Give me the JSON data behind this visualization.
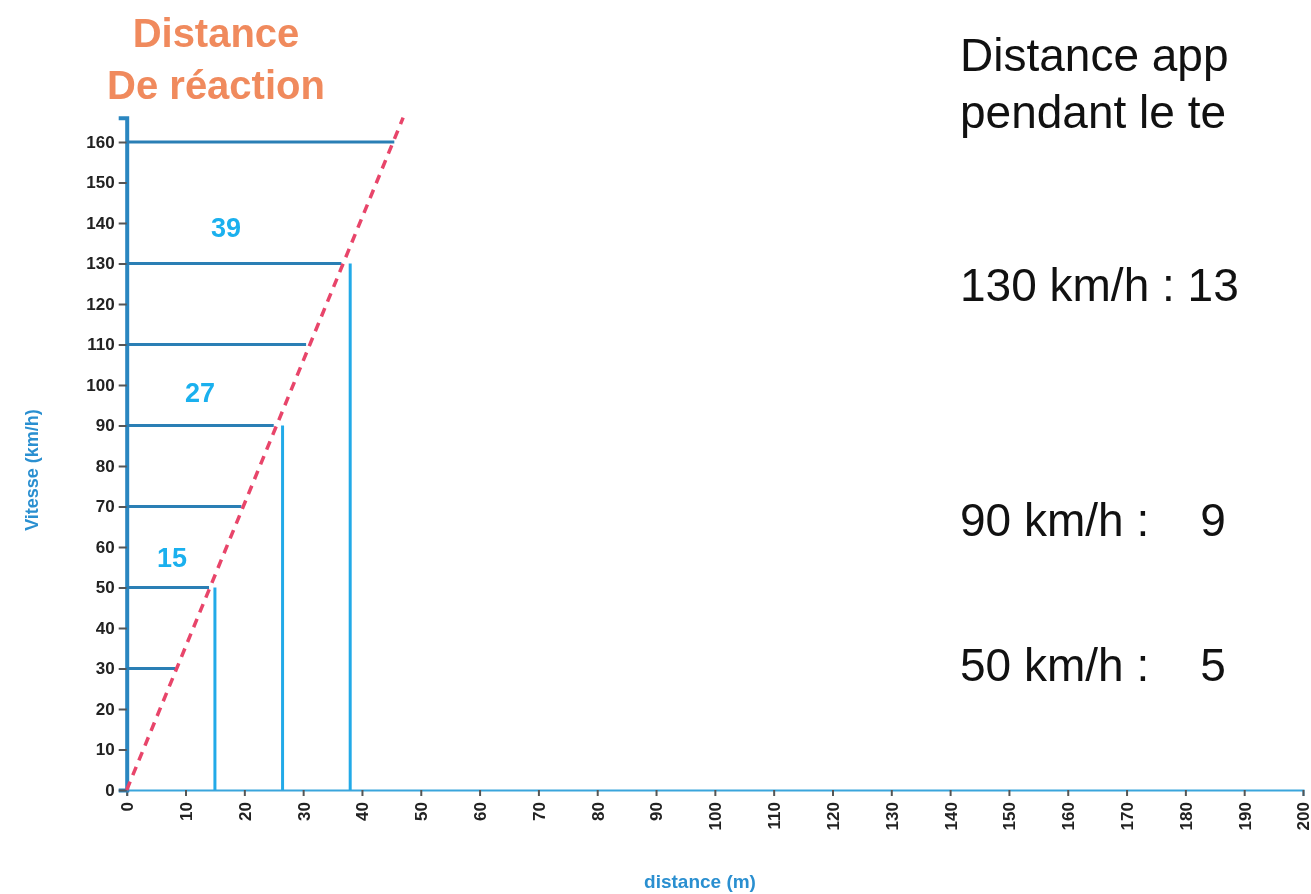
{
  "chart_data": {
    "type": "line",
    "title": "Distance\nDe réaction",
    "xlabel": "distance (m)",
    "ylabel": "Vitesse (km/h)",
    "xlim": [
      0,
      200
    ],
    "xticks": [
      0,
      10,
      20,
      30,
      40,
      50,
      60,
      70,
      80,
      90,
      100,
      110,
      120,
      130,
      140,
      150,
      160,
      170,
      180,
      190,
      200
    ],
    "ylim": [
      0,
      166
    ],
    "yticks": [
      0,
      10,
      20,
      30,
      40,
      50,
      60,
      70,
      80,
      90,
      100,
      110,
      120,
      130,
      140,
      150,
      160
    ],
    "grid": false,
    "series": [
      {
        "color": "#2a7fb5",
        "x": [
          0,
          8.3
        ],
        "values": [
          30,
          30
        ]
      },
      {
        "color": "#2a7fb5",
        "x": [
          0,
          14
        ],
        "values": [
          50,
          50
        ]
      },
      {
        "color": "#2a7fb5",
        "x": [
          0,
          19.5
        ],
        "values": [
          70,
          70
        ]
      },
      {
        "color": "#2a7fb5",
        "x": [
          0,
          25
        ],
        "values": [
          90,
          90
        ]
      },
      {
        "color": "#2a7fb5",
        "x": [
          0,
          30.5
        ],
        "values": [
          110,
          110
        ]
      },
      {
        "color": "#2a7fb5",
        "x": [
          0,
          36.5
        ],
        "values": [
          130,
          130
        ]
      },
      {
        "color": "#2a7fb5",
        "x": [
          0,
          45.5
        ],
        "values": [
          160,
          160
        ]
      },
      {
        "color": "#22aae8",
        "x": [
          15,
          15
        ],
        "values": [
          0,
          50
        ]
      },
      {
        "color": "#22aae8",
        "x": [
          26.5,
          26.5
        ],
        "values": [
          0,
          90
        ]
      },
      {
        "color": "#22aae8",
        "x": [
          38,
          38
        ],
        "values": [
          0,
          130
        ]
      },
      {
        "color": "#e8456a",
        "line_style": "dashed",
        "x": [
          0,
          47
        ],
        "values": [
          0,
          166
        ]
      }
    ],
    "annotations": [
      "15",
      "27",
      "39",
      "Distance app",
      "pendant le te",
      "130 km/h : 13",
      "90 km/h :    9",
      "50 km/h :    5"
    ]
  }
}
